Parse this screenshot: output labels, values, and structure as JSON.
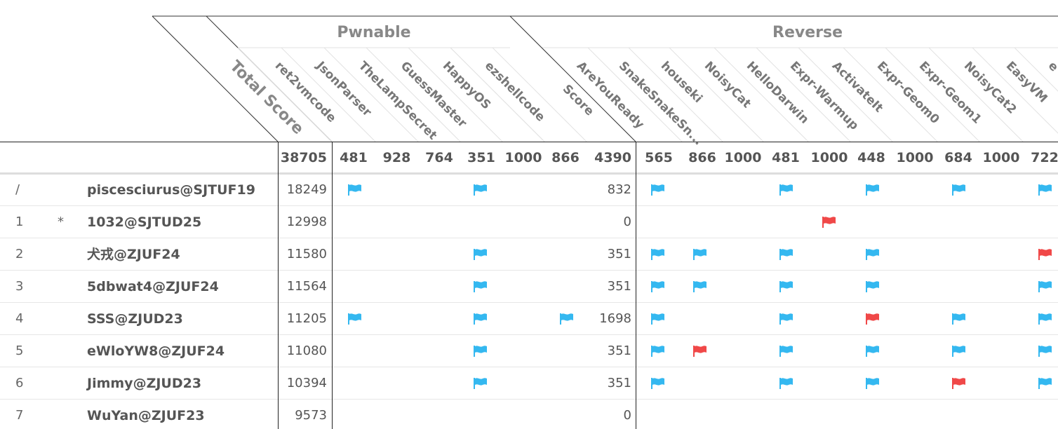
{
  "categories": [
    {
      "name": "Pwnable",
      "challenges": [
        {
          "name": "ret2vmcode",
          "points": "481"
        },
        {
          "name": "JsonParser",
          "points": "928"
        },
        {
          "name": "TheLampSecret",
          "points": "764"
        },
        {
          "name": "GuessMaster",
          "points": "351"
        },
        {
          "name": "HappyOS",
          "points": "1000"
        },
        {
          "name": "ezshellcode",
          "points": "866"
        }
      ],
      "score_label": "Score",
      "score_total": "4390"
    },
    {
      "name": "Reverse",
      "challenges": [
        {
          "name": "AreYouReady",
          "points": "565"
        },
        {
          "name": "SnakeSnakeSn...",
          "points": "866"
        },
        {
          "name": "houseki",
          "points": "1000"
        },
        {
          "name": "NoisyCat",
          "points": "481"
        },
        {
          "name": "HelloDarwin",
          "points": "1000"
        },
        {
          "name": "Expr-Warmup",
          "points": "448"
        },
        {
          "name": "ActivateIt",
          "points": "1000"
        },
        {
          "name": "Expr-Geom0",
          "points": "684"
        },
        {
          "name": "Expr-Geom1",
          "points": "1000"
        },
        {
          "name": "NoisyCat2",
          "points": "722"
        },
        {
          "name": "EasyVM",
          "points": ""
        },
        {
          "name": "e",
          "points": ""
        }
      ]
    }
  ],
  "total_score_label": "Total Score",
  "total_score_value": "38705",
  "colors": {
    "solved": "#34b8f0",
    "first_blood": "#f04848"
  },
  "rows": [
    {
      "rank": "/",
      "star": "",
      "user": "piscesciurus@SJTUF19",
      "total": "18249",
      "pwn_score": "832",
      "pwn": [
        "s",
        "",
        "",
        "s",
        "",
        ""
      ],
      "rev": [
        "s",
        "",
        "",
        "s",
        "",
        "s",
        "",
        "s",
        "",
        "s"
      ]
    },
    {
      "rank": "1",
      "star": "*",
      "user": "1032@SJTUD25",
      "total": "12998",
      "pwn_score": "0",
      "pwn": [
        "",
        "",
        "",
        "",
        "",
        ""
      ],
      "rev": [
        "",
        "",
        "",
        "",
        "f",
        "",
        "",
        "",
        "",
        ""
      ]
    },
    {
      "rank": "2",
      "star": "",
      "user": "犬戎@ZJUF24",
      "total": "11580",
      "pwn_score": "351",
      "pwn": [
        "",
        "",
        "",
        "s",
        "",
        ""
      ],
      "rev": [
        "s",
        "s",
        "",
        "s",
        "",
        "s",
        "",
        "",
        "",
        "f"
      ]
    },
    {
      "rank": "3",
      "star": "",
      "user": "5dbwat4@ZJUF24",
      "total": "11564",
      "pwn_score": "351",
      "pwn": [
        "",
        "",
        "",
        "s",
        "",
        ""
      ],
      "rev": [
        "s",
        "s",
        "",
        "s",
        "",
        "s",
        "",
        "",
        "",
        "s"
      ]
    },
    {
      "rank": "4",
      "star": "",
      "user": "SSS@ZJUD23",
      "total": "11205",
      "pwn_score": "1698",
      "pwn": [
        "s",
        "",
        "",
        "s",
        "",
        "s"
      ],
      "rev": [
        "s",
        "",
        "",
        "s",
        "",
        "f",
        "",
        "s",
        "",
        "s"
      ]
    },
    {
      "rank": "5",
      "star": "",
      "user": "eWloYW8@ZJUF24",
      "total": "11080",
      "pwn_score": "351",
      "pwn": [
        "",
        "",
        "",
        "s",
        "",
        ""
      ],
      "rev": [
        "s",
        "f",
        "",
        "s",
        "",
        "s",
        "",
        "s",
        "",
        "s"
      ]
    },
    {
      "rank": "6",
      "star": "",
      "user": "Jimmy@ZJUD23",
      "total": "10394",
      "pwn_score": "351",
      "pwn": [
        "",
        "",
        "",
        "s",
        "",
        ""
      ],
      "rev": [
        "s",
        "",
        "",
        "s",
        "",
        "s",
        "",
        "f",
        "",
        "s"
      ]
    },
    {
      "rank": "7",
      "star": "",
      "user": "WuYan@ZJUF23",
      "total": "9573",
      "pwn_score": "0",
      "pwn": [
        "",
        "",
        "",
        "",
        "",
        ""
      ],
      "rev": [
        "",
        "",
        "",
        "",
        "",
        "",
        "",
        "",
        "",
        ""
      ]
    }
  ]
}
